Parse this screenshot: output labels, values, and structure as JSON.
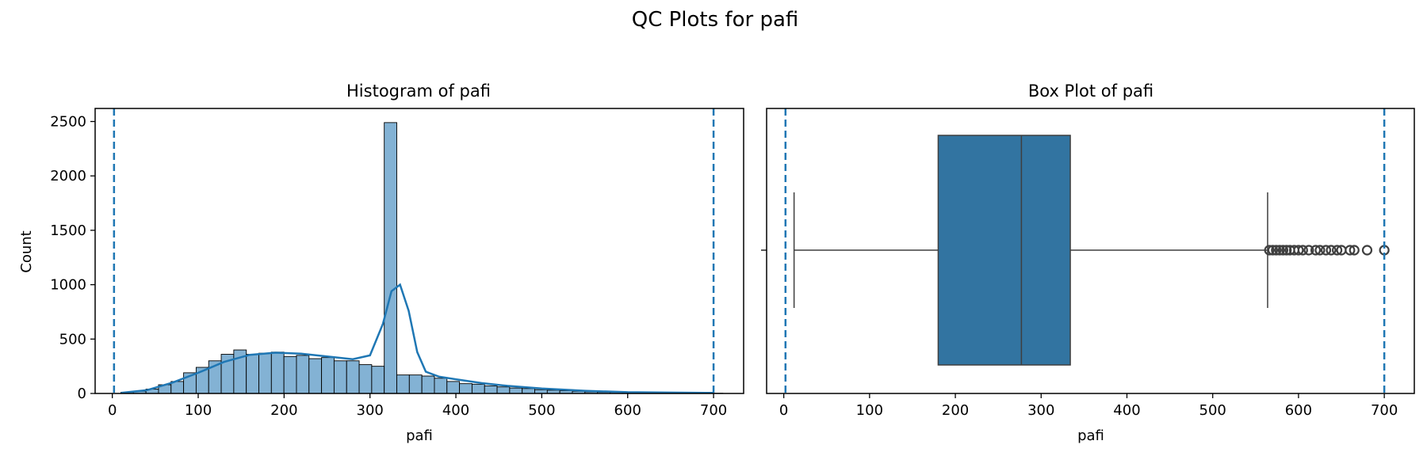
{
  "figure_title": "QC Plots for pafi",
  "chart_data": [
    {
      "type": "bar",
      "subtype": "histogram",
      "title": "Histogram of pafi",
      "xlabel": "pafi",
      "ylabel": "Count",
      "xlim": [
        -20,
        735
      ],
      "ylim": [
        0,
        2620
      ],
      "xticks": [
        0,
        100,
        200,
        300,
        400,
        500,
        600,
        700
      ],
      "yticks": [
        0,
        500,
        1000,
        1500,
        2000,
        2500
      ],
      "bin_start": 10,
      "bin_width": 14.6,
      "counts": [
        10,
        20,
        40,
        80,
        110,
        190,
        240,
        300,
        360,
        400,
        360,
        370,
        380,
        340,
        350,
        320,
        330,
        300,
        300,
        265,
        250,
        2490,
        170,
        170,
        160,
        140,
        110,
        90,
        85,
        70,
        60,
        50,
        45,
        35,
        30,
        25,
        20,
        15,
        12,
        10,
        8,
        6,
        5,
        4,
        3,
        2,
        2,
        2
      ],
      "kde": {
        "x": [
          10,
          40,
          70,
          100,
          130,
          160,
          190,
          220,
          250,
          280,
          300,
          315,
          325,
          335,
          345,
          355,
          365,
          380,
          400,
          430,
          460,
          500,
          550,
          600,
          650,
          700
        ],
        "y": [
          5,
          30,
          100,
          190,
          290,
          355,
          375,
          365,
          340,
          315,
          350,
          640,
          940,
          1000,
          760,
          380,
          200,
          155,
          130,
          95,
          70,
          45,
          25,
          12,
          8,
          5
        ]
      },
      "vlines": [
        2,
        700
      ],
      "colors": {
        "bars": "#83b2d4",
        "kde": "#1f77b4",
        "vlines": "#1f77b4"
      }
    },
    {
      "type": "box",
      "title": "Box Plot of pafi",
      "xlabel": "pafi",
      "xlim": [
        -20,
        735
      ],
      "xticks": [
        0,
        100,
        200,
        300,
        400,
        500,
        600,
        700
      ],
      "whisker_low": 12,
      "q1": 180,
      "median": 277,
      "q3": 334,
      "whisker_high": 564,
      "outliers": [
        566,
        570,
        574,
        578,
        582,
        586,
        590,
        595,
        600,
        605,
        612,
        620,
        625,
        632,
        638,
        645,
        650,
        660,
        665,
        680,
        700
      ],
      "vlines": [
        2,
        700
      ],
      "colors": {
        "box": "#3274a1",
        "lines": "#3f3f3f",
        "vlines": "#1f77b4"
      }
    }
  ]
}
